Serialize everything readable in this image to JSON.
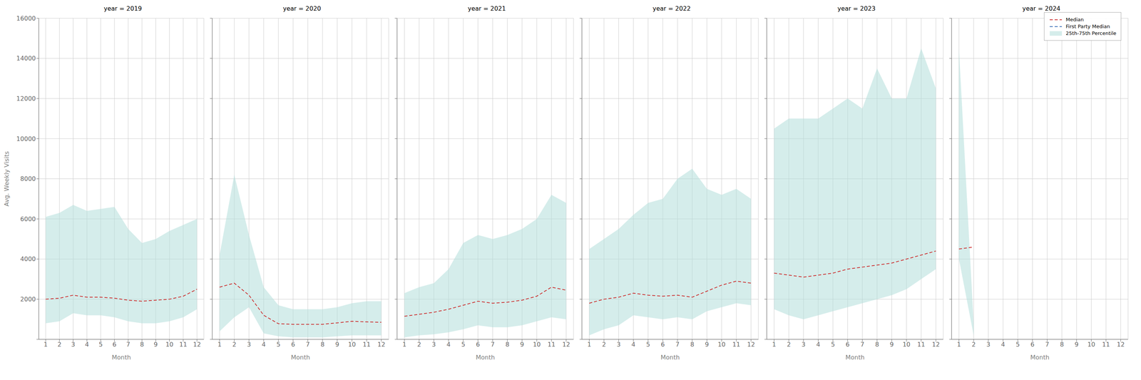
{
  "chart_data": [
    {
      "type": "line",
      "title": "year = 2019",
      "xlabel": "Month",
      "ylabel": "Avg. Weekly Visits",
      "x": [
        1,
        2,
        3,
        4,
        5,
        6,
        7,
        8,
        9,
        10,
        11,
        12
      ],
      "xlim": [
        0.5,
        12.5
      ],
      "xticks": [
        1,
        2,
        3,
        4,
        5,
        6,
        7,
        8,
        9,
        10,
        11,
        12
      ],
      "ylim": [
        0,
        16000
      ],
      "yticks": [
        {
          "value": 0,
          "label": null
        },
        2000,
        4000,
        6000,
        8000,
        10000,
        12000,
        14000,
        16000
      ],
      "grid": true,
      "series": [
        {
          "name": "Median",
          "type": "line",
          "color": "#cc3333",
          "line_style": "dashed",
          "values": [
            2000,
            2050,
            2200,
            2100,
            2100,
            2050,
            1950,
            1900,
            1950,
            2000,
            2150,
            2500
          ]
        },
        {
          "name": "25th-75th Percentile",
          "type": "band",
          "color": "#b2dfdb",
          "low": [
            800,
            900,
            1300,
            1200,
            1200,
            1100,
            900,
            800,
            800,
            900,
            1100,
            1500
          ],
          "high": [
            6100,
            6300,
            6700,
            6400,
            6500,
            6600,
            5500,
            4800,
            5000,
            5400,
            5700,
            6000
          ]
        }
      ]
    },
    {
      "type": "line",
      "title": "year = 2020",
      "xlabel": "Month",
      "x": [
        1,
        2,
        3,
        4,
        5,
        6,
        7,
        8,
        9,
        10,
        11,
        12
      ],
      "xlim": [
        0.5,
        12.5
      ],
      "xticks": [
        1,
        2,
        3,
        4,
        5,
        6,
        7,
        8,
        9,
        10,
        11,
        12
      ],
      "ylim": [
        0,
        16000
      ],
      "yticks": [
        0,
        2000,
        4000,
        6000,
        8000,
        10000,
        12000,
        14000,
        16000
      ],
      "grid": true,
      "tick_labels": "x",
      "series": [
        {
          "name": "Median",
          "type": "line",
          "color": "#cc3333",
          "line_style": "dashed",
          "values": [
            2600,
            2800,
            2200,
            1200,
            780,
            750,
            750,
            750,
            820,
            900,
            870,
            850
          ]
        },
        {
          "name": "25th-75th Percentile",
          "type": "band",
          "color": "#b2dfdb",
          "low": [
            400,
            1100,
            1600,
            300,
            150,
            100,
            100,
            100,
            150,
            200,
            200,
            200
          ],
          "high": [
            4200,
            8200,
            5200,
            2600,
            1700,
            1500,
            1500,
            1500,
            1600,
            1800,
            1900,
            1900
          ]
        }
      ]
    },
    {
      "type": "line",
      "title": "year = 2021",
      "xlabel": "Month",
      "x": [
        1,
        2,
        3,
        4,
        5,
        6,
        7,
        8,
        9,
        10,
        11,
        12
      ],
      "xlim": [
        0.5,
        12.5
      ],
      "xticks": [
        1,
        2,
        3,
        4,
        5,
        6,
        7,
        8,
        9,
        10,
        11,
        12
      ],
      "ylim": [
        0,
        16000
      ],
      "yticks": [
        0,
        2000,
        4000,
        6000,
        8000,
        10000,
        12000,
        14000,
        16000
      ],
      "grid": true,
      "tick_labels": "x",
      "series": [
        {
          "name": "Median",
          "type": "line",
          "color": "#cc3333",
          "line_style": "dashed",
          "values": [
            1150,
            1250,
            1350,
            1500,
            1700,
            1900,
            1800,
            1850,
            1950,
            2150,
            2600,
            2450
          ]
        },
        {
          "name": "25th-75th Percentile",
          "type": "band",
          "color": "#b2dfdb",
          "low": [
            100,
            200,
            250,
            350,
            500,
            700,
            600,
            600,
            700,
            900,
            1100,
            1000
          ],
          "high": [
            2300,
            2600,
            2800,
            3500,
            4800,
            5200,
            5000,
            5200,
            5500,
            6000,
            7200,
            6800
          ]
        }
      ]
    },
    {
      "type": "line",
      "title": "year = 2022",
      "xlabel": "Month",
      "x": [
        1,
        2,
        3,
        4,
        5,
        6,
        7,
        8,
        9,
        10,
        11,
        12
      ],
      "xlim": [
        0.5,
        12.5
      ],
      "xticks": [
        1,
        2,
        3,
        4,
        5,
        6,
        7,
        8,
        9,
        10,
        11,
        12
      ],
      "ylim": [
        0,
        16000
      ],
      "yticks": [
        0,
        2000,
        4000,
        6000,
        8000,
        10000,
        12000,
        14000,
        16000
      ],
      "grid": true,
      "tick_labels": "x",
      "series": [
        {
          "name": "Median",
          "type": "line",
          "color": "#cc3333",
          "line_style": "dashed",
          "values": [
            1800,
            2000,
            2100,
            2300,
            2200,
            2150,
            2200,
            2100,
            2400,
            2700,
            2900,
            2800
          ]
        },
        {
          "name": "25th-75th Percentile",
          "type": "band",
          "color": "#b2dfdb",
          "low": [
            200,
            500,
            700,
            1200,
            1100,
            1000,
            1100,
            1000,
            1400,
            1600,
            1800,
            1700
          ],
          "high": [
            4500,
            5000,
            5500,
            6200,
            6800,
            7000,
            8000,
            8500,
            7500,
            7200,
            7500,
            7000
          ]
        }
      ]
    },
    {
      "type": "line",
      "title": "year = 2023",
      "xlabel": "Month",
      "x": [
        1,
        2,
        3,
        4,
        5,
        6,
        7,
        8,
        9,
        10,
        11,
        12
      ],
      "xlim": [
        0.5,
        12.5
      ],
      "xticks": [
        1,
        2,
        3,
        4,
        5,
        6,
        7,
        8,
        9,
        10,
        11,
        12
      ],
      "ylim": [
        0,
        16000
      ],
      "yticks": [
        0,
        2000,
        4000,
        6000,
        8000,
        10000,
        12000,
        14000,
        16000
      ],
      "grid": true,
      "tick_labels": "x",
      "series": [
        {
          "name": "Median",
          "type": "line",
          "color": "#cc3333",
          "line_style": "dashed",
          "values": [
            3300,
            3200,
            3100,
            3200,
            3300,
            3500,
            3600,
            3700,
            3800,
            4000,
            4200,
            4400
          ]
        },
        {
          "name": "25th-75th Percentile",
          "type": "band",
          "color": "#b2dfdb",
          "low": [
            1500,
            1200,
            1000,
            1200,
            1400,
            1600,
            1800,
            2000,
            2200,
            2500,
            3000,
            3500
          ],
          "high": [
            10500,
            11000,
            11000,
            11000,
            11500,
            12000,
            11500,
            13500,
            12000,
            12000,
            14500,
            12500
          ]
        }
      ]
    },
    {
      "type": "line",
      "title": "year = 2024",
      "xlabel": "Month",
      "x": [
        1,
        2,
        3,
        4,
        5,
        6,
        7,
        8,
        9,
        10,
        11,
        12
      ],
      "xlim": [
        0.5,
        12.5
      ],
      "xticks": [
        1,
        2,
        3,
        4,
        5,
        6,
        7,
        8,
        9,
        10,
        11,
        12
      ],
      "ylim": [
        0,
        16000
      ],
      "yticks": [
        0,
        2000,
        4000,
        6000,
        8000,
        10000,
        12000,
        14000,
        16000
      ],
      "grid": true,
      "tick_labels": "x",
      "legend": "upper right",
      "series": [
        {
          "name": "Median",
          "type": "line",
          "color": "#cc3333",
          "line_style": "dashed",
          "values": [
            4500,
            4600,
            null,
            null,
            null,
            null,
            null,
            null,
            null,
            null,
            null,
            null
          ]
        },
        {
          "name": "First Party Median",
          "type": "line",
          "color": "#4477bb",
          "line_style": "dashed",
          "values": [
            null,
            null,
            null,
            null,
            null,
            null,
            null,
            null,
            null,
            null,
            null,
            null
          ]
        },
        {
          "name": "25th-75th Percentile",
          "type": "band",
          "color": "#b2dfdb",
          "low": [
            4000,
            200,
            null,
            null,
            null,
            null,
            null,
            null,
            null,
            null,
            null,
            null
          ],
          "high": [
            14500,
            800,
            null,
            null,
            null,
            null,
            null,
            null,
            null,
            null,
            null,
            null
          ]
        }
      ]
    }
  ]
}
